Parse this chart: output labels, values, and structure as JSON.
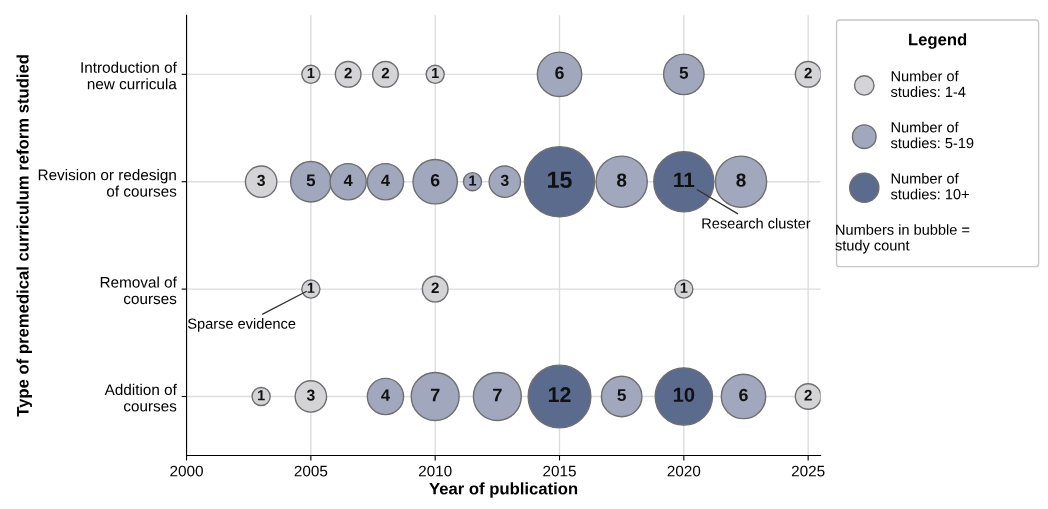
{
  "chart_data": {
    "type": "bubble",
    "xlabel": "Year of publication",
    "ylabel": "Type of premedical curriculum reform studied",
    "categories": [
      "Introduction of\nnew curricula",
      "Revision or redesign\nof courses",
      "Removal of\ncourses",
      "Addition of\ncourses"
    ],
    "orientation": "horizontal",
    "xlim": [
      2000,
      2025.5
    ],
    "xticks": [
      2000,
      2005,
      2010,
      2015,
      2020,
      2025
    ],
    "grid": true,
    "legend": "right",
    "legend_title": "Legend",
    "series": [
      {
        "values": [
          2005,
          2003,
          2005,
          2003
        ],
        "sizes": [
          1,
          3,
          1,
          1
        ],
        "value_labels": [
          "1",
          "3",
          "1",
          "1"
        ],
        "colors": [
          "#d4d4d6",
          "#d4d4d6",
          "#d4d4d6",
          "#d4d4d6"
        ]
      },
      {
        "values": [
          2006.5,
          2005,
          2010,
          2005
        ],
        "sizes": [
          2,
          5,
          2,
          3
        ],
        "value_labels": [
          "2",
          "5",
          "2",
          "3"
        ],
        "colors": [
          "#d4d4d6",
          "#a1a8bd",
          "#d4d4d6",
          "#d4d4d6"
        ]
      },
      {
        "values": [
          2008,
          2006.5,
          2020,
          2008
        ],
        "sizes": [
          2,
          4,
          1,
          4
        ],
        "value_labels": [
          "2",
          "4",
          "1",
          "4"
        ],
        "colors": [
          "#d4d4d6",
          "#a1a8bd",
          "#d4d4d6",
          "#a1a8bd"
        ]
      },
      {
        "values": [
          2010,
          2008,
          null,
          2010
        ],
        "sizes": [
          1,
          4,
          null,
          7
        ],
        "value_labels": [
          "1",
          "4",
          null,
          "7"
        ],
        "colors": [
          "#d4d4d6",
          "#a1a8bd",
          null,
          "#a1a8bd"
        ]
      },
      {
        "values": [
          2015,
          2010,
          null,
          2012.5
        ],
        "sizes": [
          6,
          6,
          null,
          7
        ],
        "value_labels": [
          "6",
          "6",
          null,
          "7"
        ],
        "colors": [
          "#a1a8bd",
          "#a1a8bd",
          null,
          "#a1a8bd"
        ]
      },
      {
        "values": [
          2020,
          2011.5,
          null,
          2015
        ],
        "sizes": [
          5,
          1,
          null,
          12
        ],
        "value_labels": [
          "5",
          "1",
          null,
          "12"
        ],
        "colors": [
          "#a1a8bd",
          "#a1a8bd",
          null,
          "#5b6b8e"
        ]
      },
      {
        "values": [
          2025,
          2012.8,
          null,
          2017.5
        ],
        "sizes": [
          2,
          3,
          null,
          5
        ],
        "value_labels": [
          "2",
          "3",
          null,
          "5"
        ],
        "colors": [
          "#d4d4d6",
          "#a1a8bd",
          null,
          "#a1a8bd"
        ]
      },
      {
        "values": [
          null,
          2015,
          null,
          2020
        ],
        "sizes": [
          null,
          15,
          null,
          10
        ],
        "value_labels": [
          null,
          "15",
          null,
          "10"
        ],
        "colors": [
          null,
          "#5b6b8e",
          null,
          "#5b6b8e"
        ]
      },
      {
        "values": [
          null,
          2017.5,
          null,
          2022.4
        ],
        "sizes": [
          null,
          8,
          null,
          6
        ],
        "value_labels": [
          null,
          "8",
          null,
          "6"
        ],
        "colors": [
          null,
          "#a1a8bd",
          null,
          "#a1a8bd"
        ]
      },
      {
        "values": [
          null,
          2020,
          null,
          2025
        ],
        "sizes": [
          null,
          11,
          null,
          2
        ],
        "value_labels": [
          null,
          "11",
          null,
          "2"
        ],
        "colors": [
          null,
          "#5b6b8e",
          null,
          "#d4d4d6"
        ]
      },
      {
        "values": [
          null,
          2022.3,
          null,
          null
        ],
        "sizes": [
          null,
          8,
          null,
          null
        ],
        "value_labels": [
          null,
          "8",
          null,
          null
        ],
        "colors": [
          null,
          "#a1a8bd",
          null,
          null
        ]
      },
      {
        "name": "Number of\nstudies: 1-4",
        "color": "#d4d4d6",
        "values": [
          null,
          null,
          null,
          null
        ]
      },
      {
        "name": "Number of\nstudies: 5-19",
        "color": "#a1a8bd",
        "values": [
          null,
          null,
          null,
          null
        ]
      },
      {
        "name": "Number of\nstudies: 10+",
        "color": "#5b6b8e",
        "values": [
          null,
          null,
          null,
          null
        ]
      }
    ],
    "annotations": [
      {
        "text": "Research cluster",
        "x": 2020,
        "y": "Revision or redesign\nof courses"
      },
      {
        "text": "Sparse evidence",
        "x": 2005,
        "y": "Removal of\ncourses"
      },
      "Numbers in bubble =\nstudy count"
    ]
  }
}
